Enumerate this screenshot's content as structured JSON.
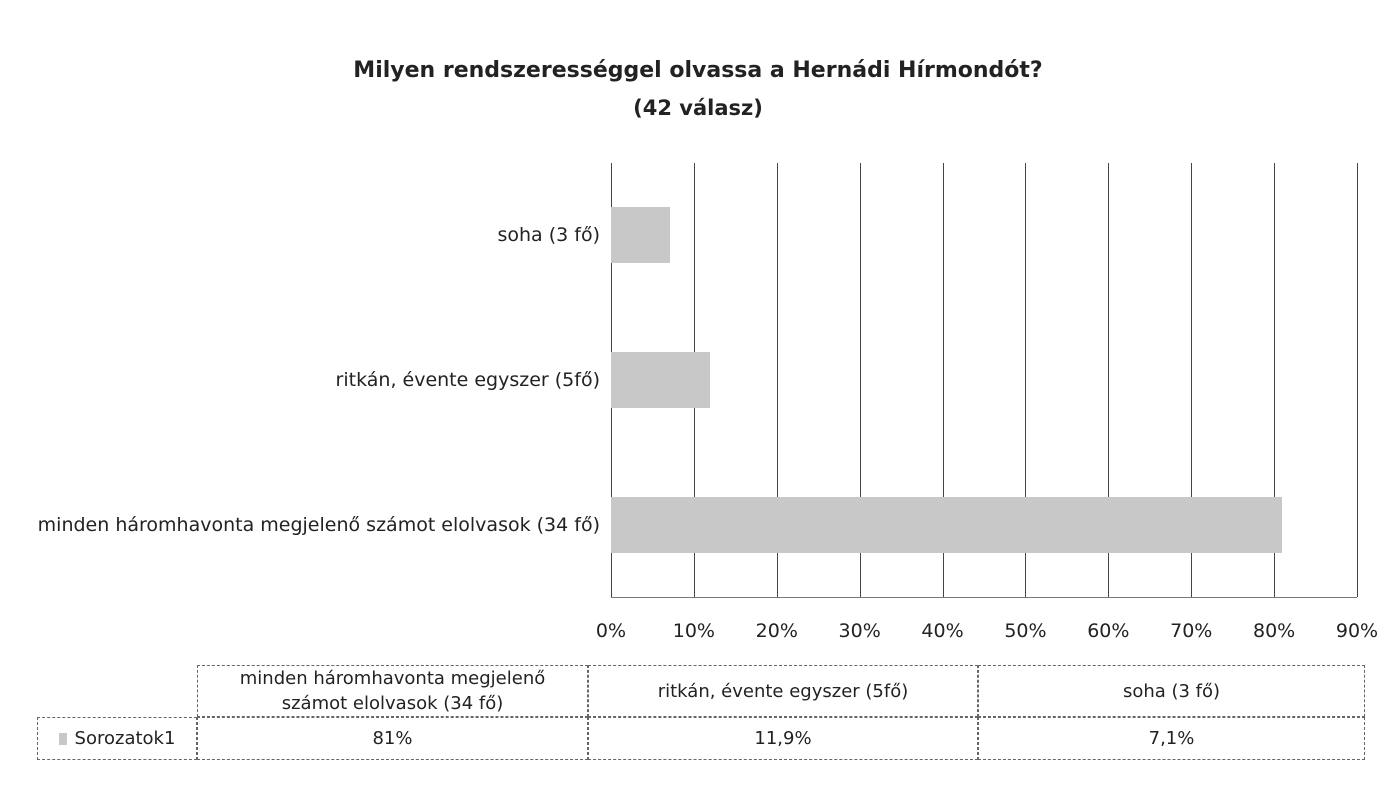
{
  "chart_data": {
    "type": "bar",
    "orientation": "horizontal",
    "title": "Milyen rendszerességgel olvassa a Hernádi Hírmondót?",
    "subtitle": "(42 válasz)",
    "categories": [
      "minden háromhavonta megjelenő számot elolvasok (34 fő)",
      "ritkán, évente egyszer (5fő)",
      "soha (3 fő)"
    ],
    "series": [
      {
        "name": "Sorozatok1",
        "color": "#c8c8c8",
        "values": [
          81,
          11.9,
          7.1
        ],
        "value_labels": [
          "81%",
          "11,9%",
          "7,1%"
        ]
      }
    ],
    "xlim": [
      0,
      90
    ],
    "xticks": [
      {
        "value": 0,
        "label": "0%"
      },
      {
        "value": 10,
        "label": "10%"
      },
      {
        "value": 20,
        "label": "20%"
      },
      {
        "value": 30,
        "label": "30%"
      },
      {
        "value": 40,
        "label": "40%"
      },
      {
        "value": 50,
        "label": "50%"
      },
      {
        "value": 60,
        "label": "60%"
      },
      {
        "value": 70,
        "label": "70%"
      },
      {
        "value": 80,
        "label": "80%"
      },
      {
        "value": 90,
        "label": "90%"
      }
    ],
    "grid": true
  }
}
